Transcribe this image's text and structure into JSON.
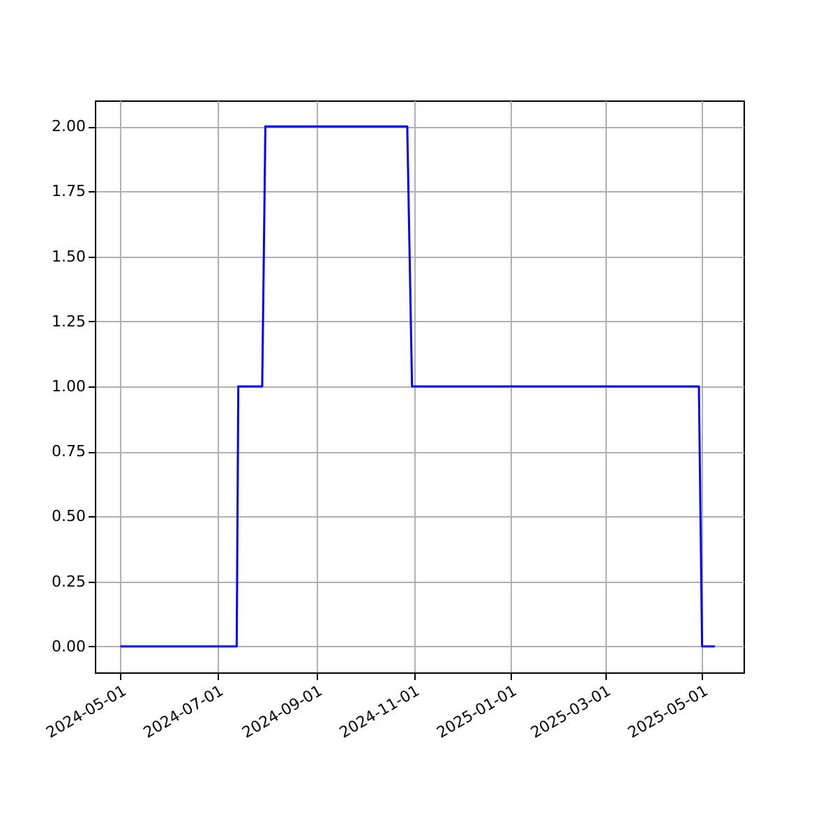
{
  "chart_data": {
    "type": "line",
    "x": [
      "2024-05-01",
      "2024-07-13",
      "2024-07-14",
      "2024-07-29",
      "2024-07-31",
      "2024-10-28",
      "2024-10-31",
      "2025-04-29",
      "2025-05-01",
      "2025-05-09"
    ],
    "series": [
      {
        "color": "#0000ff",
        "values": [
          0,
          0,
          1,
          1,
          2,
          2,
          1,
          1,
          0,
          0
        ]
      }
    ],
    "xlim": [
      "2024-04-15",
      "2025-05-27"
    ],
    "xticks": [
      "2024-05-01",
      "2024-07-01",
      "2024-09-01",
      "2024-11-01",
      "2025-01-01",
      "2025-03-01",
      "2025-05-01"
    ],
    "ylim": [
      -0.1,
      2.1
    ],
    "yticks": [
      {
        "value": 0,
        "label": "0.00"
      },
      {
        "value": 0.25,
        "label": "0.25"
      },
      {
        "value": 0.5,
        "label": "0.50"
      },
      {
        "value": 0.75,
        "label": "0.75"
      },
      {
        "value": 1,
        "label": "1.00"
      },
      {
        "value": 1.25,
        "label": "1.25"
      },
      {
        "value": 1.5,
        "label": "1.50"
      },
      {
        "value": 1.75,
        "label": "1.75"
      },
      {
        "value": 2,
        "label": "2.00"
      }
    ],
    "grid": true,
    "marker": "none",
    "line_style": "solid"
  }
}
